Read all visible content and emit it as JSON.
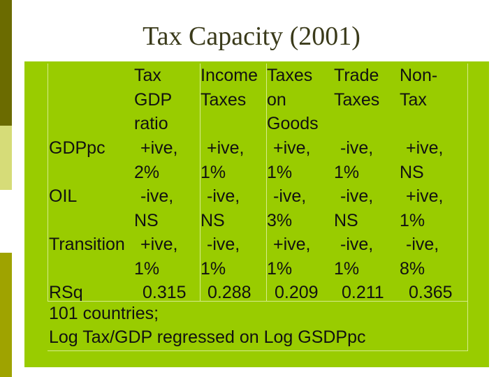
{
  "title": "Tax Capacity (2001)",
  "columns": [
    {
      "l1": "Tax",
      "l2": "GDP",
      "l3": "ratio"
    },
    {
      "l1": "Income",
      "l2": "Taxes",
      "l3": ""
    },
    {
      "l1": "Taxes",
      "l2": "on",
      "l3": "Goods"
    },
    {
      "l1": "Trade",
      "l2": "Taxes",
      "l3": ""
    },
    {
      "l1": "Non-",
      "l2": "Tax",
      "l3": ""
    }
  ],
  "rows": [
    {
      "label": "GDPpc",
      "cells": [
        [
          "+ive,",
          "2%"
        ],
        [
          "+ive,",
          "1%"
        ],
        [
          "+ive,",
          "1%"
        ],
        [
          "-ive,",
          "1%"
        ],
        [
          "+ive,",
          "NS"
        ]
      ]
    },
    {
      "label": "OIL",
      "cells": [
        [
          "-ive,",
          "NS"
        ],
        [
          "-ive,",
          "NS"
        ],
        [
          "-ive,",
          "3%"
        ],
        [
          "-ive,",
          "NS"
        ],
        [
          "+ive,",
          "1%"
        ]
      ]
    },
    {
      "label": "Transition",
      "cells": [
        [
          "+ive,",
          "1%"
        ],
        [
          "-ive,",
          "1%"
        ],
        [
          "+ive,",
          "1%"
        ],
        [
          "-ive,",
          "1%"
        ],
        [
          "-ive,",
          "8%"
        ]
      ]
    }
  ],
  "rsq": {
    "label": "RSq",
    "values": [
      "0.315",
      "0.288",
      "0.209",
      "0.211",
      "0.365"
    ]
  },
  "footer": {
    "line1": "101 countries;",
    "line2": "Log Tax/GDP regressed on Log GSDPpc"
  }
}
